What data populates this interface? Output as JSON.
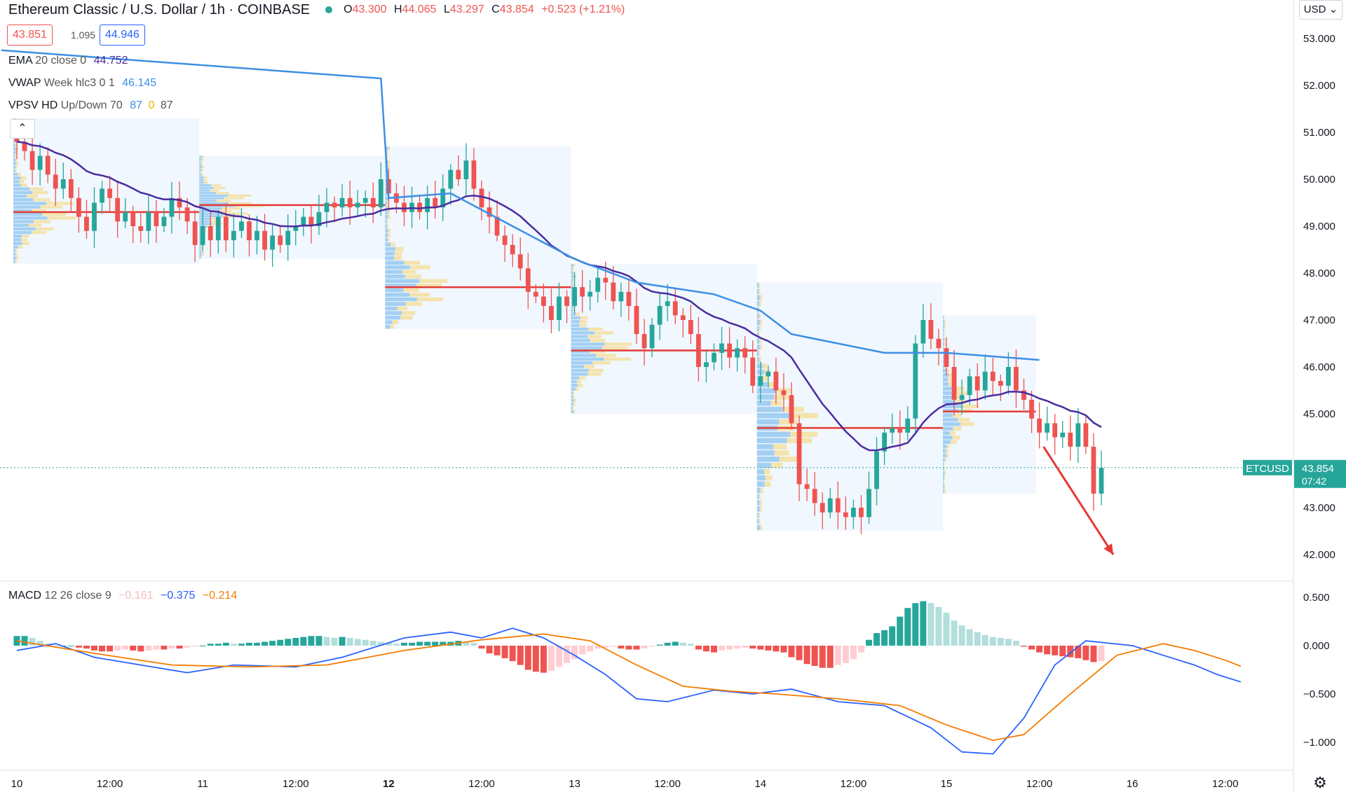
{
  "header": {
    "symbol": "Ethereum Classic / U.S. Dollar",
    "interval": "1h",
    "exchange": "COINBASE",
    "o_label": "O",
    "o": "43.300",
    "h_label": "H",
    "h": "44.065",
    "l_label": "L",
    "l": "43.297",
    "c_label": "C",
    "c": "43.854",
    "change": "+0.523 (+1.21%)"
  },
  "quote": {
    "bid": "43.851",
    "spread": "1.095",
    "ask": "44.946"
  },
  "indicators": {
    "ema": {
      "name": "EMA",
      "params": "20 close 0",
      "value": "44.752"
    },
    "vwap": {
      "name": "VWAP",
      "params": "Week hlc3 0 1",
      "value": "46.145"
    },
    "vpsv": {
      "name": "VPSV HD",
      "params": "Up/Down 70",
      "v1": "87",
      "v2": "0",
      "v3": "87"
    },
    "macd": {
      "name": "MACD",
      "params": "12 26 close 9",
      "hist": "−0.161",
      "macd": "−0.375",
      "signal": "−0.214"
    }
  },
  "currency_button": "USD",
  "colors": {
    "up": "#26a69a",
    "down": "#ef5350",
    "ema": "#4a2c9f",
    "vwap": "#3d8fe5",
    "poc": "#e53935",
    "macd": "#2962ff",
    "signal": "#f57c00",
    "arrow": "#e53935"
  },
  "chart_data": [
    {
      "type": "candlestick",
      "symbol": "ETCUSD",
      "timeframe": "1h",
      "last_price": "43.854",
      "countdown": "07:42",
      "y_ticks": [
        "53.000",
        "52.000",
        "51.000",
        "50.000",
        "49.000",
        "48.000",
        "47.000",
        "46.000",
        "45.000",
        "44.000",
        "43.000",
        "42.000"
      ],
      "ylim": [
        41.5,
        53.7
      ],
      "x_ticks": [
        {
          "h": 0,
          "label": "10"
        },
        {
          "h": 12,
          "label": "12:00"
        },
        {
          "h": 24,
          "label": "11"
        },
        {
          "h": 36,
          "label": "12:00"
        },
        {
          "h": 48,
          "label": "12"
        },
        {
          "h": 60,
          "label": "12:00"
        },
        {
          "h": 72,
          "label": "13"
        },
        {
          "h": 84,
          "label": "12:00"
        },
        {
          "h": 96,
          "label": "14"
        },
        {
          "h": 108,
          "label": "12:00"
        },
        {
          "h": 120,
          "label": "15"
        },
        {
          "h": 132,
          "label": "12:00"
        },
        {
          "h": 144,
          "label": "16"
        },
        {
          "h": 156,
          "label": "12:00"
        }
      ],
      "x_range_hours": [
        -2,
        167
      ],
      "close": [
        50.8,
        50.6,
        50.2,
        50.5,
        50.1,
        49.8,
        50.0,
        49.6,
        49.2,
        48.9,
        49.5,
        49.8,
        49.6,
        49.1,
        49.3,
        49.0,
        48.9,
        49.3,
        49.0,
        49.2,
        49.6,
        49.4,
        49.1,
        48.6,
        49.0,
        48.7,
        49.2,
        48.7,
        48.9,
        49.1,
        48.7,
        48.9,
        48.5,
        48.8,
        48.6,
        48.9,
        49.0,
        49.2,
        49.0,
        49.3,
        49.5,
        49.4,
        49.6,
        49.4,
        49.5,
        49.6,
        49.4,
        50.0,
        49.7,
        49.5,
        49.3,
        49.5,
        49.3,
        49.6,
        49.4,
        49.8,
        50.2,
        50.0,
        50.4,
        49.8,
        49.4,
        49.2,
        48.8,
        48.6,
        48.4,
        48.1,
        47.6,
        47.5,
        47.3,
        47.0,
        47.5,
        47.3,
        47.7,
        47.5,
        47.6,
        47.9,
        47.8,
        47.4,
        47.6,
        47.3,
        46.7,
        46.4,
        46.9,
        47.3,
        47.4,
        47.1,
        47.0,
        46.7,
        46.0,
        46.1,
        46.3,
        46.5,
        46.2,
        46.4,
        46.2,
        45.6,
        45.8,
        45.9,
        45.5,
        45.4,
        44.8,
        43.5,
        43.4,
        43.1,
        42.9,
        43.2,
        42.9,
        42.8,
        43.0,
        42.8,
        43.4,
        44.2,
        44.6,
        44.7,
        44.6,
        44.9,
        46.5,
        47.0,
        46.6,
        46.4,
        46.0,
        45.3,
        45.4,
        45.8,
        45.5,
        45.9,
        45.7,
        45.6,
        46.0,
        45.5,
        45.3,
        44.9,
        44.6,
        44.8,
        44.5,
        44.6,
        44.3,
        44.8,
        44.3,
        43.3,
        43.85
      ],
      "volume_profile_sessions": [
        {
          "start_h": 0,
          "end_h": 24,
          "high": 51.3,
          "low": 48.2,
          "poc": 49.3
        },
        {
          "start_h": 24,
          "end_h": 48,
          "high": 50.5,
          "low": 48.3,
          "poc": 49.45
        },
        {
          "start_h": 48,
          "end_h": 72,
          "high": 50.7,
          "low": 46.8,
          "poc": 47.7
        },
        {
          "start_h": 72,
          "end_h": 96,
          "high": 48.2,
          "low": 45.0,
          "poc": 46.35
        },
        {
          "start_h": 96,
          "end_h": 120,
          "high": 47.8,
          "low": 42.5,
          "poc": 44.7
        },
        {
          "start_h": 120,
          "end_h": 132,
          "high": 47.1,
          "low": 43.3,
          "poc": 45.05
        }
      ],
      "vwap": [
        {
          "h": -2,
          "v": 52.75
        },
        {
          "h": 47,
          "v": 52.15
        },
        {
          "h": 48,
          "v": 49.6
        },
        {
          "h": 56,
          "v": 49.7
        },
        {
          "h": 64,
          "v": 49.0
        },
        {
          "h": 72,
          "v": 48.3
        },
        {
          "h": 80,
          "v": 47.8
        },
        {
          "h": 90,
          "v": 47.55
        },
        {
          "h": 96,
          "v": 47.2
        },
        {
          "h": 100,
          "v": 46.7
        },
        {
          "h": 106,
          "v": 46.5
        },
        {
          "h": 112,
          "v": 46.3
        },
        {
          "h": 120,
          "v": 46.3
        },
        {
          "h": 132,
          "v": 46.15
        }
      ],
      "ema20": "computed from close",
      "projection_arrow": {
        "from_h": 132,
        "from_v": 44.3,
        "to_h": 141,
        "to_v": 42.0
      }
    },
    {
      "type": "macd",
      "y_ticks": [
        "0.500",
        "0.000",
        "−0.500",
        "−1.000"
      ],
      "ylim": [
        -1.3,
        0.62
      ],
      "histogram": [
        0.1,
        0.1,
        0.08,
        0.05,
        0.02,
        0,
        0,
        0,
        -0.02,
        -0.03,
        -0.05,
        -0.06,
        -0.06,
        -0.05,
        -0.04,
        -0.05,
        -0.06,
        -0.05,
        -0.04,
        -0.04,
        -0.03,
        -0.03,
        -0.02,
        -0.01,
        0,
        0.02,
        0.02,
        0.03,
        0.02,
        0.02,
        0.03,
        0.03,
        0.04,
        0.05,
        0.06,
        0.07,
        0.08,
        0.09,
        0.1,
        0.1,
        0.09,
        0.08,
        0.09,
        0.08,
        0.07,
        0.06,
        0.05,
        0.04,
        0.03,
        0.02,
        0.03,
        0.03,
        0.04,
        0.04,
        0.04,
        0.04,
        0.04,
        0.05,
        0.04,
        0.03,
        -0.03,
        -0.08,
        -0.1,
        -0.13,
        -0.16,
        -0.2,
        -0.25,
        -0.27,
        -0.28,
        -0.26,
        -0.22,
        -0.18,
        -0.14,
        -0.09,
        -0.06,
        -0.03,
        -0.02,
        -0.01,
        -0.03,
        -0.04,
        -0.04,
        -0.03,
        -0.01,
        0.01,
        0.03,
        0.04,
        0.03,
        0.02,
        -0.04,
        -0.06,
        -0.07,
        -0.05,
        -0.04,
        -0.03,
        -0.02,
        -0.03,
        -0.04,
        -0.05,
        -0.06,
        -0.07,
        -0.12,
        -0.15,
        -0.19,
        -0.21,
        -0.23,
        -0.23,
        -0.2,
        -0.18,
        -0.14,
        -0.07,
        0.06,
        0.13,
        0.16,
        0.2,
        0.3,
        0.39,
        0.44,
        0.46,
        0.44,
        0.4,
        0.34,
        0.26,
        0.21,
        0.17,
        0.14,
        0.11,
        0.09,
        0.08,
        0.07,
        0.05,
        -0.01,
        -0.04,
        -0.07,
        -0.09,
        -0.1,
        -0.11,
        -0.12,
        -0.13,
        -0.15,
        -0.17,
        -0.161
      ],
      "macd_line": [
        {
          "i": 0,
          "v": -0.05
        },
        {
          "i": 5,
          "v": 0.02
        },
        {
          "i": 10,
          "v": -0.12
        },
        {
          "i": 16,
          "v": -0.2
        },
        {
          "i": 22,
          "v": -0.28
        },
        {
          "i": 28,
          "v": -0.2
        },
        {
          "i": 36,
          "v": -0.22
        },
        {
          "i": 42,
          "v": -0.12
        },
        {
          "i": 50,
          "v": 0.08
        },
        {
          "i": 56,
          "v": 0.14
        },
        {
          "i": 60,
          "v": 0.08
        },
        {
          "i": 64,
          "v": 0.18
        },
        {
          "i": 68,
          "v": 0.08
        },
        {
          "i": 72,
          "v": -0.1
        },
        {
          "i": 76,
          "v": -0.3
        },
        {
          "i": 80,
          "v": -0.55
        },
        {
          "i": 84,
          "v": -0.58
        },
        {
          "i": 90,
          "v": -0.46
        },
        {
          "i": 95,
          "v": -0.5
        },
        {
          "i": 100,
          "v": -0.45
        },
        {
          "i": 106,
          "v": -0.58
        },
        {
          "i": 112,
          "v": -0.62
        },
        {
          "i": 118,
          "v": -0.85
        },
        {
          "i": 122,
          "v": -1.1
        },
        {
          "i": 126,
          "v": -1.12
        },
        {
          "i": 130,
          "v": -0.75
        },
        {
          "i": 134,
          "v": -0.2
        },
        {
          "i": 138,
          "v": 0.05
        },
        {
          "i": 144,
          "v": 0.0
        },
        {
          "i": 148,
          "v": -0.1
        },
        {
          "i": 152,
          "v": -0.2
        },
        {
          "i": 155,
          "v": -0.3
        },
        {
          "i": 158,
          "v": -0.375
        }
      ],
      "signal_line": [
        {
          "i": 0,
          "v": 0.05
        },
        {
          "i": 10,
          "v": -0.08
        },
        {
          "i": 20,
          "v": -0.2
        },
        {
          "i": 30,
          "v": -0.22
        },
        {
          "i": 40,
          "v": -0.2
        },
        {
          "i": 50,
          "v": -0.05
        },
        {
          "i": 60,
          "v": 0.06
        },
        {
          "i": 68,
          "v": 0.12
        },
        {
          "i": 74,
          "v": 0.05
        },
        {
          "i": 80,
          "v": -0.2
        },
        {
          "i": 86,
          "v": -0.42
        },
        {
          "i": 92,
          "v": -0.47
        },
        {
          "i": 98,
          "v": -0.5
        },
        {
          "i": 106,
          "v": -0.55
        },
        {
          "i": 114,
          "v": -0.62
        },
        {
          "i": 120,
          "v": -0.82
        },
        {
          "i": 126,
          "v": -0.98
        },
        {
          "i": 130,
          "v": -0.92
        },
        {
          "i": 136,
          "v": -0.5
        },
        {
          "i": 142,
          "v": -0.1
        },
        {
          "i": 148,
          "v": 0.02
        },
        {
          "i": 152,
          "v": -0.05
        },
        {
          "i": 156,
          "v": -0.15
        },
        {
          "i": 158,
          "v": -0.214
        }
      ]
    }
  ]
}
